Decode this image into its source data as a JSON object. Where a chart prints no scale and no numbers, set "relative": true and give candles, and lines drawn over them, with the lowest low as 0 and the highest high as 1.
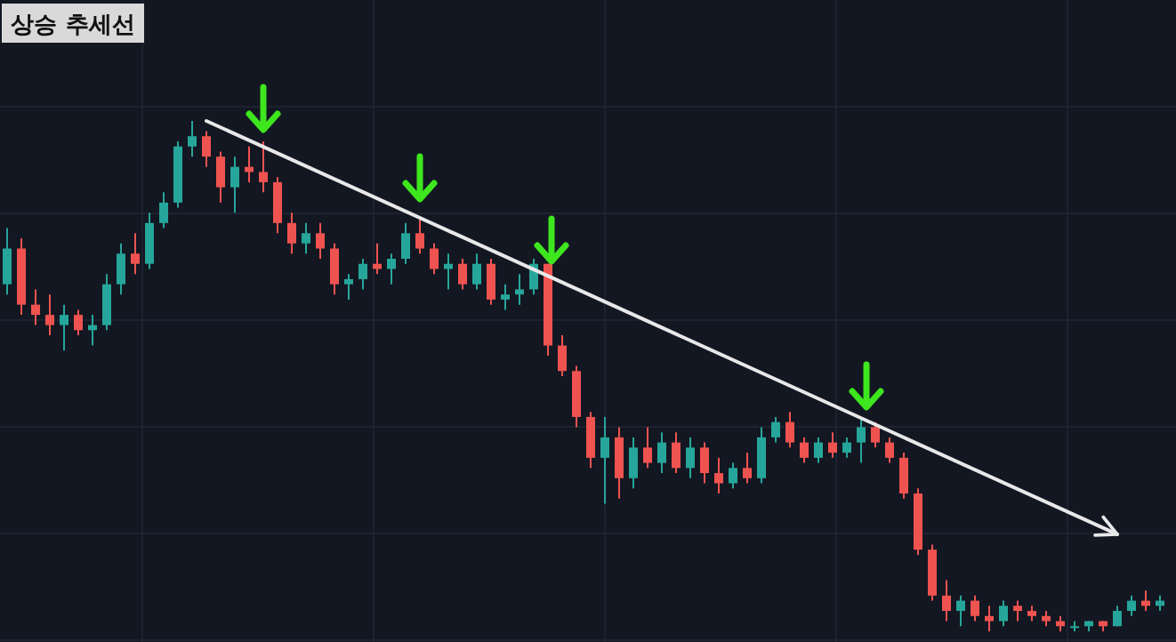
{
  "chart_data": {
    "type": "candlestick",
    "title": "상승 추세선",
    "relative": true,
    "grid": true,
    "categories": [
      null,
      null,
      null,
      null,
      null,
      null,
      null,
      null,
      null,
      null,
      null,
      null,
      null,
      null,
      null,
      null,
      null,
      null,
      null,
      null,
      null,
      null,
      null,
      null,
      null,
      null,
      null,
      null,
      null,
      null,
      null,
      null,
      null,
      null,
      null,
      null,
      null,
      null,
      null,
      null,
      null,
      null,
      null,
      null,
      null,
      null,
      null,
      null,
      null,
      null,
      null,
      null,
      null,
      null,
      null,
      null,
      null,
      null,
      null,
      null,
      null,
      null,
      null,
      null,
      null,
      null,
      null,
      null,
      null,
      null,
      null,
      null,
      null,
      null,
      null,
      null,
      null,
      null,
      null,
      null,
      null,
      null
    ],
    "ohlc": [
      [
        0.68,
        0.79,
        0.66,
        0.75
      ],
      [
        0.75,
        0.77,
        0.62,
        0.64
      ],
      [
        0.64,
        0.67,
        0.6,
        0.62
      ],
      [
        0.62,
        0.66,
        0.58,
        0.6
      ],
      [
        0.6,
        0.64,
        0.55,
        0.62
      ],
      [
        0.62,
        0.63,
        0.58,
        0.59
      ],
      [
        0.59,
        0.62,
        0.56,
        0.6
      ],
      [
        0.6,
        0.7,
        0.59,
        0.68
      ],
      [
        0.68,
        0.76,
        0.66,
        0.74
      ],
      [
        0.74,
        0.78,
        0.7,
        0.72
      ],
      [
        0.72,
        0.82,
        0.71,
        0.8
      ],
      [
        0.8,
        0.86,
        0.79,
        0.84
      ],
      [
        0.84,
        0.96,
        0.83,
        0.95
      ],
      [
        0.95,
        1.0,
        0.93,
        0.97
      ],
      [
        0.97,
        0.98,
        0.91,
        0.93
      ],
      [
        0.93,
        0.94,
        0.84,
        0.87
      ],
      [
        0.87,
        0.93,
        0.82,
        0.91
      ],
      [
        0.91,
        0.95,
        0.88,
        0.9
      ],
      [
        0.9,
        0.96,
        0.86,
        0.88
      ],
      [
        0.88,
        0.89,
        0.78,
        0.8
      ],
      [
        0.8,
        0.82,
        0.74,
        0.76
      ],
      [
        0.76,
        0.8,
        0.74,
        0.78
      ],
      [
        0.78,
        0.8,
        0.73,
        0.75
      ],
      [
        0.75,
        0.76,
        0.66,
        0.68
      ],
      [
        0.68,
        0.7,
        0.65,
        0.69
      ],
      [
        0.69,
        0.73,
        0.67,
        0.72
      ],
      [
        0.72,
        0.76,
        0.7,
        0.71
      ],
      [
        0.71,
        0.74,
        0.68,
        0.73
      ],
      [
        0.73,
        0.8,
        0.72,
        0.78
      ],
      [
        0.78,
        0.81,
        0.74,
        0.75
      ],
      [
        0.75,
        0.76,
        0.7,
        0.71
      ],
      [
        0.71,
        0.74,
        0.67,
        0.72
      ],
      [
        0.72,
        0.73,
        0.67,
        0.68
      ],
      [
        0.68,
        0.74,
        0.67,
        0.72
      ],
      [
        0.72,
        0.73,
        0.64,
        0.65
      ],
      [
        0.65,
        0.68,
        0.63,
        0.66
      ],
      [
        0.66,
        0.7,
        0.64,
        0.67
      ],
      [
        0.67,
        0.73,
        0.66,
        0.72
      ],
      [
        0.72,
        0.72,
        0.54,
        0.56
      ],
      [
        0.56,
        0.58,
        0.5,
        0.51
      ],
      [
        0.51,
        0.52,
        0.4,
        0.42
      ],
      [
        0.42,
        0.43,
        0.32,
        0.34
      ],
      [
        0.34,
        0.42,
        0.25,
        0.38
      ],
      [
        0.38,
        0.4,
        0.26,
        0.3
      ],
      [
        0.3,
        0.38,
        0.28,
        0.36
      ],
      [
        0.36,
        0.4,
        0.32,
        0.33
      ],
      [
        0.33,
        0.39,
        0.31,
        0.37
      ],
      [
        0.37,
        0.39,
        0.31,
        0.32
      ],
      [
        0.32,
        0.38,
        0.3,
        0.36
      ],
      [
        0.36,
        0.37,
        0.29,
        0.31
      ],
      [
        0.31,
        0.34,
        0.27,
        0.29
      ],
      [
        0.29,
        0.33,
        0.28,
        0.32
      ],
      [
        0.32,
        0.35,
        0.29,
        0.3
      ],
      [
        0.3,
        0.4,
        0.29,
        0.38
      ],
      [
        0.38,
        0.42,
        0.37,
        0.41
      ],
      [
        0.41,
        0.43,
        0.36,
        0.37
      ],
      [
        0.37,
        0.38,
        0.33,
        0.34
      ],
      [
        0.34,
        0.38,
        0.33,
        0.37
      ],
      [
        0.37,
        0.39,
        0.34,
        0.35
      ],
      [
        0.35,
        0.38,
        0.34,
        0.37
      ],
      [
        0.37,
        0.42,
        0.33,
        0.4
      ],
      [
        0.4,
        0.41,
        0.36,
        0.37
      ],
      [
        0.37,
        0.38,
        0.33,
        0.34
      ],
      [
        0.34,
        0.35,
        0.26,
        0.27
      ],
      [
        0.27,
        0.28,
        0.15,
        0.16
      ],
      [
        0.16,
        0.17,
        0.06,
        0.07
      ],
      [
        0.07,
        0.1,
        0.02,
        0.04
      ],
      [
        0.04,
        0.07,
        0.01,
        0.06
      ],
      [
        0.06,
        0.07,
        0.02,
        0.03
      ],
      [
        0.03,
        0.05,
        0.0,
        0.02
      ],
      [
        0.02,
        0.06,
        0.01,
        0.05
      ],
      [
        0.05,
        0.06,
        0.02,
        0.04
      ],
      [
        0.04,
        0.05,
        0.02,
        0.03
      ],
      [
        0.03,
        0.04,
        0.01,
        0.02
      ],
      [
        0.02,
        0.03,
        0.0,
        0.01
      ],
      [
        0.01,
        0.02,
        0.0,
        0.01
      ],
      [
        0.01,
        0.02,
        0.0,
        0.02
      ],
      [
        0.02,
        0.02,
        0.0,
        0.01
      ],
      [
        0.01,
        0.05,
        0.01,
        0.04
      ],
      [
        0.04,
        0.07,
        0.03,
        0.06
      ],
      [
        0.06,
        0.08,
        0.04,
        0.05
      ],
      [
        0.05,
        0.07,
        0.04,
        0.06
      ]
    ],
    "series": [
      {
        "type": "line",
        "color": "#e8e8e8",
        "values": [
          null,
          null,
          null,
          null,
          null,
          null,
          null,
          null,
          null,
          null,
          null,
          null,
          null,
          null,
          1.0,
          null,
          null,
          null,
          null,
          null,
          null,
          null,
          null,
          null,
          null,
          null,
          null,
          null,
          null,
          null,
          null,
          null,
          null,
          null,
          null,
          null,
          null,
          null,
          null,
          null,
          null,
          null,
          null,
          null,
          null,
          null,
          null,
          null,
          null,
          null,
          null,
          null,
          null,
          null,
          null,
          null,
          null,
          null,
          null,
          null,
          null,
          null,
          null,
          null,
          null,
          null,
          null,
          null,
          null,
          null,
          null,
          null,
          null,
          null,
          null,
          null,
          null,
          null,
          0.19,
          null,
          null,
          null
        ]
      }
    ]
  }
}
